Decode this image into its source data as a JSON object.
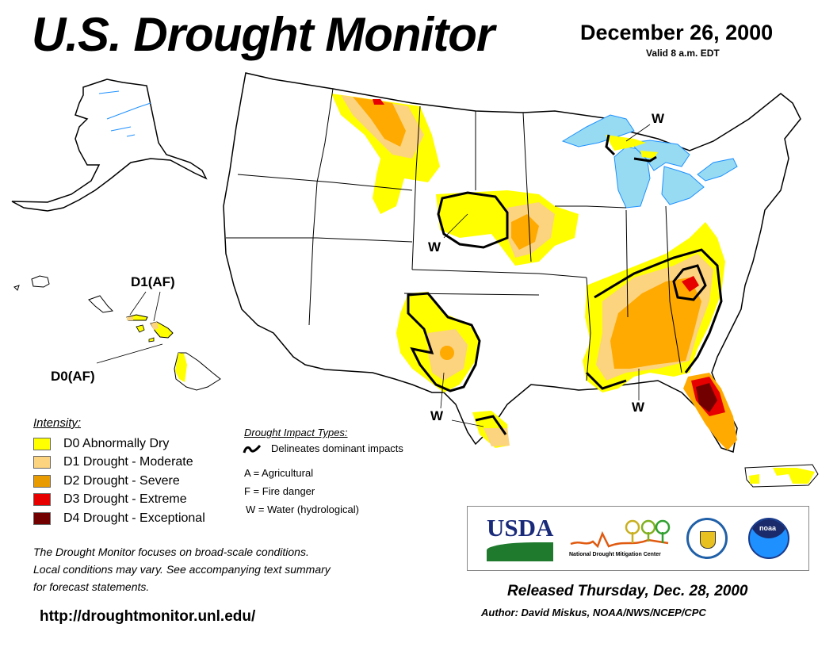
{
  "header": {
    "title": "U.S. Drought Monitor",
    "date": "December 26, 2000",
    "valid": "Valid 8 a.m. EDT"
  },
  "map": {
    "labels": {
      "hawaii_d1": "D1(AF)",
      "hawaii_d0": "D0(AF)",
      "w_great_lakes": "W",
      "w_plains": "W",
      "w_texas": "W",
      "w_southeast": "W"
    },
    "colors": {
      "d0": "#ffff00",
      "d1": "#fcd37f",
      "d2": "#ffaa00",
      "d3": "#e60000",
      "d4": "#730000",
      "water": "#97dbf2",
      "river": "#1e90ff",
      "county": "#aaaaaa",
      "state": "#000000"
    }
  },
  "legend": {
    "title": "Intensity:",
    "items": [
      {
        "code": "D0",
        "label": "D0 Abnormally Dry",
        "color": "#ffff00"
      },
      {
        "code": "D1",
        "label": "D1 Drought - Moderate",
        "color": "#fcd37f"
      },
      {
        "code": "D2",
        "label": "D2 Drought - Severe",
        "color": "#e89b00"
      },
      {
        "code": "D3",
        "label": "D3 Drought - Extreme",
        "color": "#e60000"
      },
      {
        "code": "D4",
        "label": "D4 Drought - Exceptional",
        "color": "#730000"
      }
    ]
  },
  "impacts": {
    "title": "Drought Impact Types:",
    "line_label": "Delineates dominant impacts",
    "items": [
      "A = Agricultural",
      "F = Fire danger",
      "W = Water (hydrological)"
    ]
  },
  "footer": {
    "note_line1": "The Drought Monitor focuses on broad-scale conditions.",
    "note_line2": "Local conditions may vary. See accompanying text summary",
    "note_line3": "for forecast statements.",
    "url": "http://droughtmonitor.unl.edu/",
    "released": "Released Thursday, Dec. 28, 2000",
    "author": "Author: David Miskus, NOAA/NWS/NCEP/CPC"
  },
  "logos": {
    "usda": "USDA",
    "ndmc": "National Drought Mitigation Center",
    "noaa": "noaa",
    "doc_icon": "commerce-seal-icon"
  }
}
